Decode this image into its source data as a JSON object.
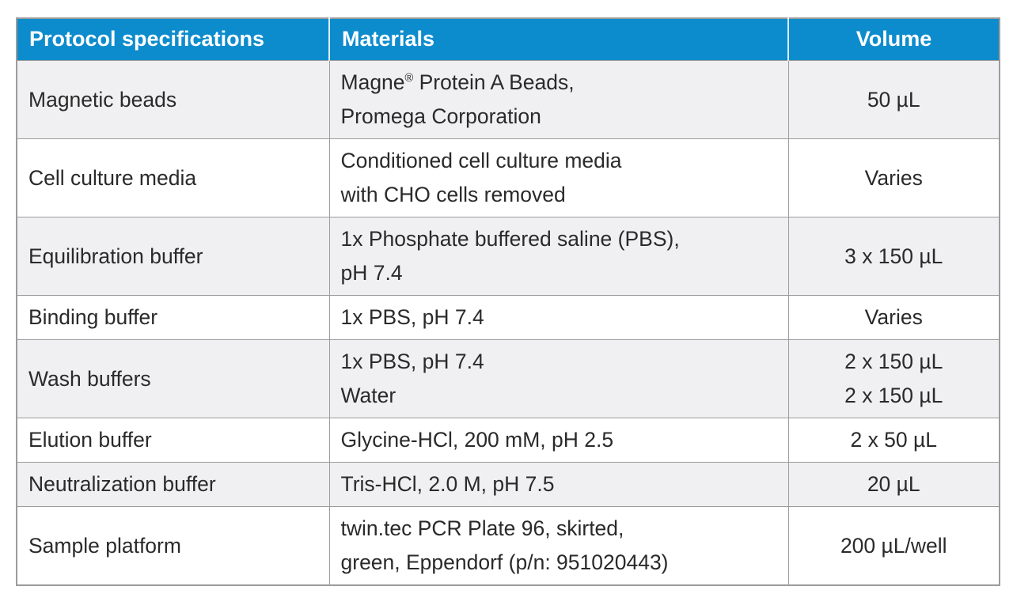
{
  "colors": {
    "header_background": "#0d8ccd",
    "header_text": "#ffffff",
    "row_stripe": "#f0f0f3",
    "row_plain": "#ffffff",
    "grid_border": "#9c9c9c",
    "body_text": "#2a2a2a"
  },
  "table": {
    "columns": [
      {
        "label": "Protocol specifications",
        "align": "left"
      },
      {
        "label": "Materials",
        "align": "left"
      },
      {
        "label": "Volume",
        "align": "center"
      }
    ],
    "rows": [
      {
        "shaded": true,
        "spec": "Magnetic beads",
        "materials": [
          "Magne® Protein A Beads,",
          "Promega Corporation"
        ],
        "volume": [
          "50 µL"
        ]
      },
      {
        "shaded": false,
        "spec": "Cell culture media",
        "materials": [
          "Conditioned cell culture media",
          "with CHO cells removed"
        ],
        "volume": [
          "Varies"
        ]
      },
      {
        "shaded": true,
        "spec": "Equilibration buffer",
        "materials": [
          "1x Phosphate buffered saline (PBS),",
          "pH 7.4"
        ],
        "volume": [
          "3 x 150 µL"
        ]
      },
      {
        "shaded": false,
        "spec": "Binding buffer",
        "materials": [
          "1x PBS, pH 7.4"
        ],
        "volume": [
          "Varies"
        ]
      },
      {
        "shaded": true,
        "spec": "Wash buffers",
        "materials": [
          "1x PBS, pH 7.4",
          "Water"
        ],
        "volume": [
          "2 x 150 µL",
          "2 x 150 µL"
        ]
      },
      {
        "shaded": false,
        "spec": "Elution buffer",
        "materials": [
          "Glycine-HCl, 200 mM, pH 2.5"
        ],
        "volume": [
          "2 x 50 µL"
        ]
      },
      {
        "shaded": true,
        "spec": "Neutralization buffer",
        "materials": [
          "Tris-HCl, 2.0 M, pH 7.5"
        ],
        "volume": [
          "20 µL"
        ]
      },
      {
        "shaded": false,
        "spec": "Sample platform",
        "materials": [
          "twin.tec PCR Plate 96, skirted,",
          "green, Eppendorf (p/n: 951020443)"
        ],
        "volume": [
          "200 µL/well"
        ]
      }
    ]
  }
}
